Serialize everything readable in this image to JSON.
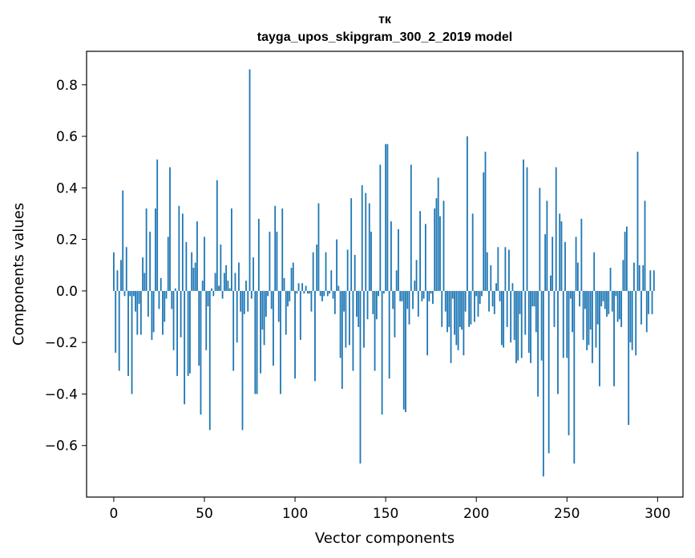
{
  "chart_data": {
    "type": "bar",
    "title": "тк",
    "subtitle": "tayga_upos_skipgram_300_2_2019 model",
    "xlabel": "Vector components",
    "ylabel": "Components values",
    "xlim": [
      -15,
      314
    ],
    "ylim": [
      -0.8,
      0.93
    ],
    "xticks": [
      0,
      50,
      100,
      150,
      200,
      250,
      300
    ],
    "yticks": [
      -0.6,
      -0.4,
      -0.2,
      0.0,
      0.2,
      0.4,
      0.6,
      0.8
    ],
    "ytick_labels": [
      "−0.6",
      "−0.4",
      "−0.2",
      "0.0",
      "0.2",
      "0.4",
      "0.6",
      "0.8"
    ],
    "xtick_labels": [
      "0",
      "50",
      "100",
      "150",
      "200",
      "250",
      "300"
    ],
    "bar_color": "#1f77b4",
    "values": [
      0.15,
      -0.24,
      0.08,
      -0.31,
      0.12,
      0.39,
      -0.02,
      0.17,
      -0.33,
      -0.02,
      -0.4,
      -0.02,
      -0.08,
      -0.17,
      -0.05,
      -0.17,
      0.13,
      0.07,
      0.32,
      -0.1,
      0.23,
      -0.19,
      -0.16,
      0.32,
      0.51,
      -0.07,
      0.05,
      -0.17,
      -0.12,
      -0.03,
      0.21,
      0.48,
      -0.07,
      -0.23,
      0.01,
      -0.33,
      0.33,
      -0.18,
      0.3,
      -0.44,
      0.19,
      -0.33,
      -0.32,
      0.15,
      0.09,
      0.11,
      0.27,
      -0.29,
      -0.48,
      0.04,
      0.21,
      -0.23,
      -0.06,
      -0.54,
      0.01,
      -0.02,
      0.07,
      0.43,
      0.02,
      0.18,
      -0.03,
      0.07,
      0.1,
      0.04,
      0.01,
      0.32,
      -0.31,
      0.07,
      -0.2,
      0.11,
      -0.08,
      -0.54,
      -0.09,
      0.04,
      -0.08,
      0.86,
      -0.03,
      0.13,
      -0.4,
      -0.4,
      0.28,
      -0.32,
      -0.15,
      -0.21,
      -0.1,
      -0.02,
      0.23,
      -0.07,
      -0.29,
      0.33,
      0.23,
      -0.12,
      -0.4,
      0.32,
      0.05,
      -0.17,
      -0.06,
      -0.04,
      0.09,
      0.11,
      -0.34,
      -0.01,
      0.03,
      -0.19,
      0.03,
      -0.01,
      0.02,
      -0.01,
      -0.01,
      -0.08,
      0.15,
      -0.35,
      0.18,
      0.34,
      -0.02,
      -0.04,
      -0.02,
      0.15,
      -0.02,
      -0.01,
      0.08,
      -0.03,
      -0.09,
      0.2,
      0.02,
      -0.26,
      -0.38,
      -0.08,
      -0.22,
      0.16,
      -0.21,
      0.36,
      -0.31,
      0.14,
      -0.1,
      -0.14,
      -0.67,
      0.41,
      -0.22,
      0.38,
      -0.11,
      0.34,
      0.23,
      -0.09,
      -0.31,
      -0.11,
      -0.02,
      0.49,
      -0.48,
      -0.01,
      0.57,
      0.57,
      -0.34,
      0.27,
      -0.07,
      -0.18,
      0.08,
      0.24,
      -0.04,
      -0.04,
      -0.46,
      -0.47,
      -0.07,
      -0.13,
      0.49,
      -0.07,
      0.04,
      0.12,
      -0.1,
      0.31,
      -0.04,
      -0.03,
      0.26,
      -0.25,
      -0.04,
      -0.01,
      -0.05,
      0.32,
      0.36,
      0.44,
      0.29,
      -0.14,
      0.35,
      -0.08,
      -0.16,
      -0.14,
      -0.28,
      -0.03,
      -0.17,
      -0.21,
      -0.23,
      -0.14,
      -0.15,
      -0.25,
      -0.08,
      0.6,
      -0.14,
      -0.13,
      0.3,
      -0.12,
      -0.02,
      -0.1,
      -0.05,
      -0.02,
      0.46,
      0.54,
      0.15,
      -0.08,
      0.1,
      -0.06,
      -0.09,
      0.03,
      0.17,
      -0.04,
      -0.21,
      -0.22,
      0.17,
      -0.14,
      0.16,
      -0.2,
      0.03,
      -0.19,
      -0.28,
      -0.27,
      -0.09,
      -0.26,
      0.51,
      -0.17,
      0.48,
      -0.24,
      -0.28,
      -0.06,
      -0.06,
      -0.16,
      -0.41,
      0.4,
      -0.27,
      -0.72,
      0.22,
      0.35,
      -0.63,
      0.06,
      0.21,
      -0.14,
      0.48,
      -0.4,
      0.3,
      0.27,
      -0.26,
      0.19,
      -0.26,
      -0.56,
      -0.03,
      -0.16,
      -0.67,
      0.21,
      0.11,
      -0.06,
      0.28,
      -0.19,
      -0.07,
      -0.23,
      -0.21,
      -0.15,
      -0.28,
      0.15,
      -0.22,
      -0.13,
      -0.37,
      -0.06,
      -0.04,
      -0.07,
      -0.1,
      -0.09,
      0.09,
      -0.08,
      -0.37,
      -0.02,
      -0.12,
      -0.11,
      -0.14,
      0.12,
      0.23,
      0.25,
      -0.52,
      -0.2,
      -0.23,
      0.11,
      -0.25,
      0.54,
      0.1,
      -0.13,
      0.1,
      0.35,
      -0.16,
      -0.09,
      0.08,
      -0.09,
      0.08
    ]
  }
}
